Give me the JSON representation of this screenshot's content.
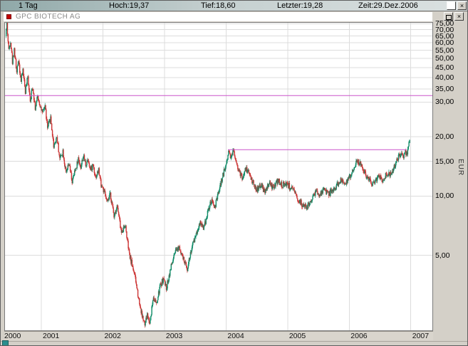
{
  "toolbar": {
    "period": "1 Tag",
    "high": "Hoch:19,37",
    "low": "Tief:18,60",
    "last": "Letzter:19,28",
    "time": "Zeit:29.Dez.2006"
  },
  "window_controls": {
    "close": "×"
  },
  "chart_window": {
    "title": "GPC BIOTECH AG"
  },
  "chart_data": {
    "type": "candlestick",
    "title": "GPC BIOTECH AG",
    "ylabel": "EUR",
    "y_scale": "log",
    "grid": true,
    "x_range": [
      2000.41,
      2007.35
    ],
    "y_range": [
      2.08,
      75.9
    ],
    "candles_per_year": 110,
    "colors": {
      "up": "#0d8a66",
      "down": "#cc3333",
      "grid": "#dcdcdc",
      "hline": "#cc55cc"
    },
    "y_ticks": [
      {
        "value": 75,
        "label": "75,00"
      },
      {
        "value": 70,
        "label": "70,00"
      },
      {
        "value": 65,
        "label": "65,00"
      },
      {
        "value": 60,
        "label": "60,00"
      },
      {
        "value": 55,
        "label": "55,00"
      },
      {
        "value": 50,
        "label": "50,00"
      },
      {
        "value": 45,
        "label": "45,00"
      },
      {
        "value": 40,
        "label": "40,00"
      },
      {
        "value": 35,
        "label": "35,00"
      },
      {
        "value": 30,
        "label": "30,00"
      },
      {
        "value": 20,
        "label": "20,00"
      },
      {
        "value": 15,
        "label": "15,00"
      },
      {
        "value": 10,
        "label": "10,00"
      },
      {
        "value": 5,
        "label": "5,00"
      }
    ],
    "x_ticks": [
      {
        "value": 2000,
        "label": "2000"
      },
      {
        "value": 2001,
        "label": "2001"
      },
      {
        "value": 2002,
        "label": "2002"
      },
      {
        "value": 2003,
        "label": "2003"
      },
      {
        "value": 2004,
        "label": "2004"
      },
      {
        "value": 2005,
        "label": "2005"
      },
      {
        "value": 2006,
        "label": "2006"
      },
      {
        "value": 2007,
        "label": "2007"
      }
    ],
    "hlines": [
      {
        "price": 32.4,
        "t_start": 2000.41,
        "t_end": 2007.35
      },
      {
        "price": 17.2,
        "t_start": 2004.03,
        "t_end": 2006.93
      }
    ],
    "last_candle": {
      "high": 19.37,
      "low": 18.6,
      "close": 19.28
    },
    "anchors": [
      [
        2000.42,
        65
      ],
      [
        2000.44,
        75
      ],
      [
        2000.47,
        55
      ],
      [
        2000.5,
        62
      ],
      [
        2000.53,
        48
      ],
      [
        2000.56,
        56
      ],
      [
        2000.6,
        42
      ],
      [
        2000.63,
        50
      ],
      [
        2000.67,
        38
      ],
      [
        2000.7,
        44
      ],
      [
        2000.74,
        34
      ],
      [
        2000.78,
        40
      ],
      [
        2000.82,
        31
      ],
      [
        2000.86,
        36
      ],
      [
        2000.9,
        28
      ],
      [
        2000.94,
        32
      ],
      [
        2000.98,
        29
      ],
      [
        2001.02,
        26
      ],
      [
        2001.06,
        29
      ],
      [
        2001.1,
        22
      ],
      [
        2001.15,
        25
      ],
      [
        2001.2,
        18
      ],
      [
        2001.25,
        20
      ],
      [
        2001.3,
        15.5
      ],
      [
        2001.35,
        17
      ],
      [
        2001.4,
        13
      ],
      [
        2001.45,
        14.5
      ],
      [
        2001.5,
        11.8
      ],
      [
        2001.55,
        13.5
      ],
      [
        2001.6,
        15.5
      ],
      [
        2001.64,
        14
      ],
      [
        2001.68,
        16
      ],
      [
        2001.72,
        14.5
      ],
      [
        2001.76,
        15.5
      ],
      [
        2001.8,
        13.5
      ],
      [
        2001.84,
        14.5
      ],
      [
        2001.88,
        12.5
      ],
      [
        2001.93,
        13.5
      ],
      [
        2001.97,
        11.5
      ],
      [
        2002.02,
        10.5
      ],
      [
        2002.07,
        9.2
      ],
      [
        2002.12,
        10.2
      ],
      [
        2002.18,
        8
      ],
      [
        2002.23,
        9
      ],
      [
        2002.3,
        6.5
      ],
      [
        2002.36,
        7.2
      ],
      [
        2002.43,
        5
      ],
      [
        2002.5,
        4.2
      ],
      [
        2002.56,
        3.3
      ],
      [
        2002.62,
        2.6
      ],
      [
        2002.68,
        2.2
      ],
      [
        2002.72,
        2.5
      ],
      [
        2002.76,
        2.25
      ],
      [
        2002.82,
        3.1
      ],
      [
        2002.87,
        2.8
      ],
      [
        2002.93,
        3.5
      ],
      [
        2002.98,
        3.8
      ],
      [
        2003.03,
        3.4
      ],
      [
        2003.1,
        4.3
      ],
      [
        2003.17,
        5.1
      ],
      [
        2003.24,
        5.6
      ],
      [
        2003.3,
        4.8
      ],
      [
        2003.37,
        4.3
      ],
      [
        2003.44,
        5.4
      ],
      [
        2003.51,
        6.4
      ],
      [
        2003.58,
        7.4
      ],
      [
        2003.64,
        6.9
      ],
      [
        2003.7,
        8.3
      ],
      [
        2003.76,
        9.4
      ],
      [
        2003.82,
        8.8
      ],
      [
        2003.88,
        10.5
      ],
      [
        2003.94,
        12.5
      ],
      [
        2004.0,
        14.5
      ],
      [
        2004.04,
        17
      ],
      [
        2004.08,
        15.8
      ],
      [
        2004.12,
        17.2
      ],
      [
        2004.17,
        14.8
      ],
      [
        2004.22,
        13
      ],
      [
        2004.27,
        12.3
      ],
      [
        2004.32,
        13.8
      ],
      [
        2004.37,
        13.2
      ],
      [
        2004.43,
        11.8
      ],
      [
        2004.5,
        10.7
      ],
      [
        2004.57,
        11.4
      ],
      [
        2004.63,
        10.4
      ],
      [
        2004.7,
        11.6
      ],
      [
        2004.77,
        11.0
      ],
      [
        2004.84,
        12.0
      ],
      [
        2004.91,
        11.3
      ],
      [
        2004.97,
        11.7
      ],
      [
        2005.03,
        11.2
      ],
      [
        2005.1,
        10.5
      ],
      [
        2005.17,
        9.6
      ],
      [
        2005.24,
        9.0
      ],
      [
        2005.31,
        8.7
      ],
      [
        2005.38,
        9.5
      ],
      [
        2005.45,
        10.5
      ],
      [
        2005.52,
        10.1
      ],
      [
        2005.59,
        10.8
      ],
      [
        2005.66,
        10.2
      ],
      [
        2005.73,
        10.7
      ],
      [
        2005.8,
        11.3
      ],
      [
        2005.87,
        12.1
      ],
      [
        2005.94,
        11.7
      ],
      [
        2006.0,
        12.3
      ],
      [
        2006.06,
        13.4
      ],
      [
        2006.12,
        15.2
      ],
      [
        2006.18,
        14.5
      ],
      [
        2006.24,
        13.4
      ],
      [
        2006.3,
        12.4
      ],
      [
        2006.36,
        11.8
      ],
      [
        2006.42,
        12.0
      ],
      [
        2006.48,
        12.6
      ],
      [
        2006.54,
        12.1
      ],
      [
        2006.6,
        12.9
      ],
      [
        2006.66,
        13.0
      ],
      [
        2006.72,
        13.8
      ],
      [
        2006.78,
        15.3
      ],
      [
        2006.83,
        16.3
      ],
      [
        2006.87,
        15.9
      ],
      [
        2006.91,
        16.5
      ],
      [
        2006.95,
        16.9
      ],
      [
        2006.98,
        19.28
      ]
    ]
  }
}
